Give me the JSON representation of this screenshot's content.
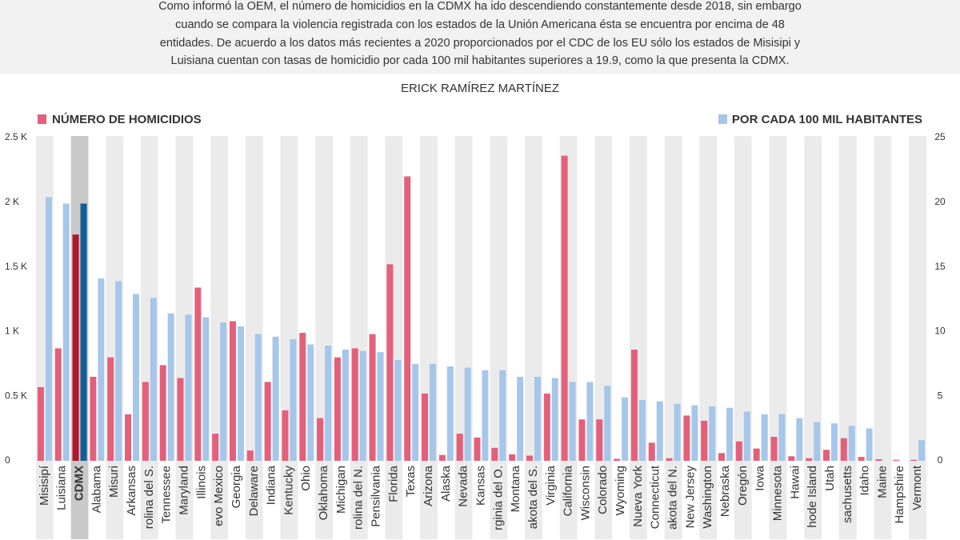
{
  "intro": [
    "Como informó la OEM, el número de homicidios en la CDMX ha ido descendiendo constantemente desde 2018, sin embargo",
    "cuando se compara la violencia registrada con los estados de la Unión Americana ésta se encuentra por encima de 48",
    "entidades. De acuerdo a los datos más recientes a 2020 proporcionados por el CDC de los EU sólo los estados de Misisipi y",
    "Luisiana cuentan con tasas de homicidio por cada 100 mil habitantes superiores a 19.9, como la que presenta la CDMX."
  ],
  "byline": "ERICK RAMÍREZ MARTÍNEZ",
  "chart_data": {
    "type": "bar",
    "categories": [
      "Misisipí",
      "Luisiana",
      "CDMX",
      "Alabama",
      "Misuri",
      "Arkansas",
      "rolina del S.",
      "Tennessee",
      "Maryland",
      "Illinois",
      "evo Mexico",
      "Georgia",
      "Delaware",
      "Indiana",
      "Kentucky",
      "Ohio",
      "Oklahoma",
      "Michigan",
      "rolina del N.",
      "Pensilvania",
      "Florida",
      "Texas",
      "Arizona",
      "Alaska",
      "Nevada",
      "Kansas",
      "rginia del O.",
      "Montana",
      "akota del S.",
      "Virginia",
      "California",
      "Wisconsin",
      "Colorado",
      "Wyoming",
      "Nueva York",
      "Connecticut",
      "akota del N.",
      "New Jersey",
      "Washington",
      "Nebraska",
      "Oregón",
      "Iowa",
      "Minnesota",
      "Hawai",
      "hode Island",
      "Utah",
      "sachusetts",
      "Idaho",
      "Maine",
      "Hampshire",
      "Vermont"
    ],
    "highlight": "CDMX",
    "series": [
      {
        "name": "NÚMERO DE HOMICIDIOS",
        "color": "#e4607a",
        "highlight_color": "#b3162c",
        "axis": "y",
        "values": [
          570,
          870,
          1750,
          650,
          800,
          360,
          610,
          740,
          640,
          1340,
          210,
          1080,
          80,
          610,
          390,
          990,
          330,
          800,
          870,
          980,
          1520,
          2200,
          520,
          45,
          210,
          180,
          100,
          50,
          40,
          520,
          2360,
          320,
          320,
          15,
          860,
          140,
          20,
          350,
          310,
          60,
          150,
          95,
          185,
          35,
          20,
          85,
          175,
          30,
          12,
          8,
          8
        ]
      },
      {
        "name": "POR CADA 100 MIL HABITANTES",
        "color": "#a6c6ea",
        "highlight_color": "#135e96",
        "axis": "y2",
        "values": [
          20.4,
          19.9,
          19.9,
          14.1,
          13.9,
          12.9,
          12.6,
          11.4,
          11.3,
          11.1,
          10.7,
          10.4,
          9.8,
          9.6,
          9.4,
          9.0,
          8.9,
          8.6,
          8.5,
          8.4,
          7.8,
          7.5,
          7.5,
          7.3,
          7.2,
          7.0,
          7.0,
          6.5,
          6.5,
          6.4,
          6.1,
          6.1,
          5.8,
          4.9,
          4.7,
          4.6,
          4.4,
          4.3,
          4.2,
          4.1,
          3.8,
          3.6,
          3.6,
          3.3,
          3.0,
          2.9,
          2.7,
          2.5,
          null,
          null,
          1.6
        ]
      }
    ],
    "ylim": [
      0,
      2500
    ],
    "yticks": [
      0,
      {
        "value": 500,
        "label": "0.5 K"
      },
      {
        "value": 1000,
        "label": "1 K"
      },
      {
        "value": 1500,
        "label": "1.5 K"
      },
      {
        "value": 2000,
        "label": "2 K"
      },
      {
        "value": 2500,
        "label": "2.5 K"
      }
    ],
    "y2lim": [
      0,
      25
    ],
    "y2ticks": [
      0,
      5,
      10,
      15,
      20,
      25
    ],
    "band_color": "#ebebeb",
    "highlight_band_color": "#c9c9c9"
  }
}
